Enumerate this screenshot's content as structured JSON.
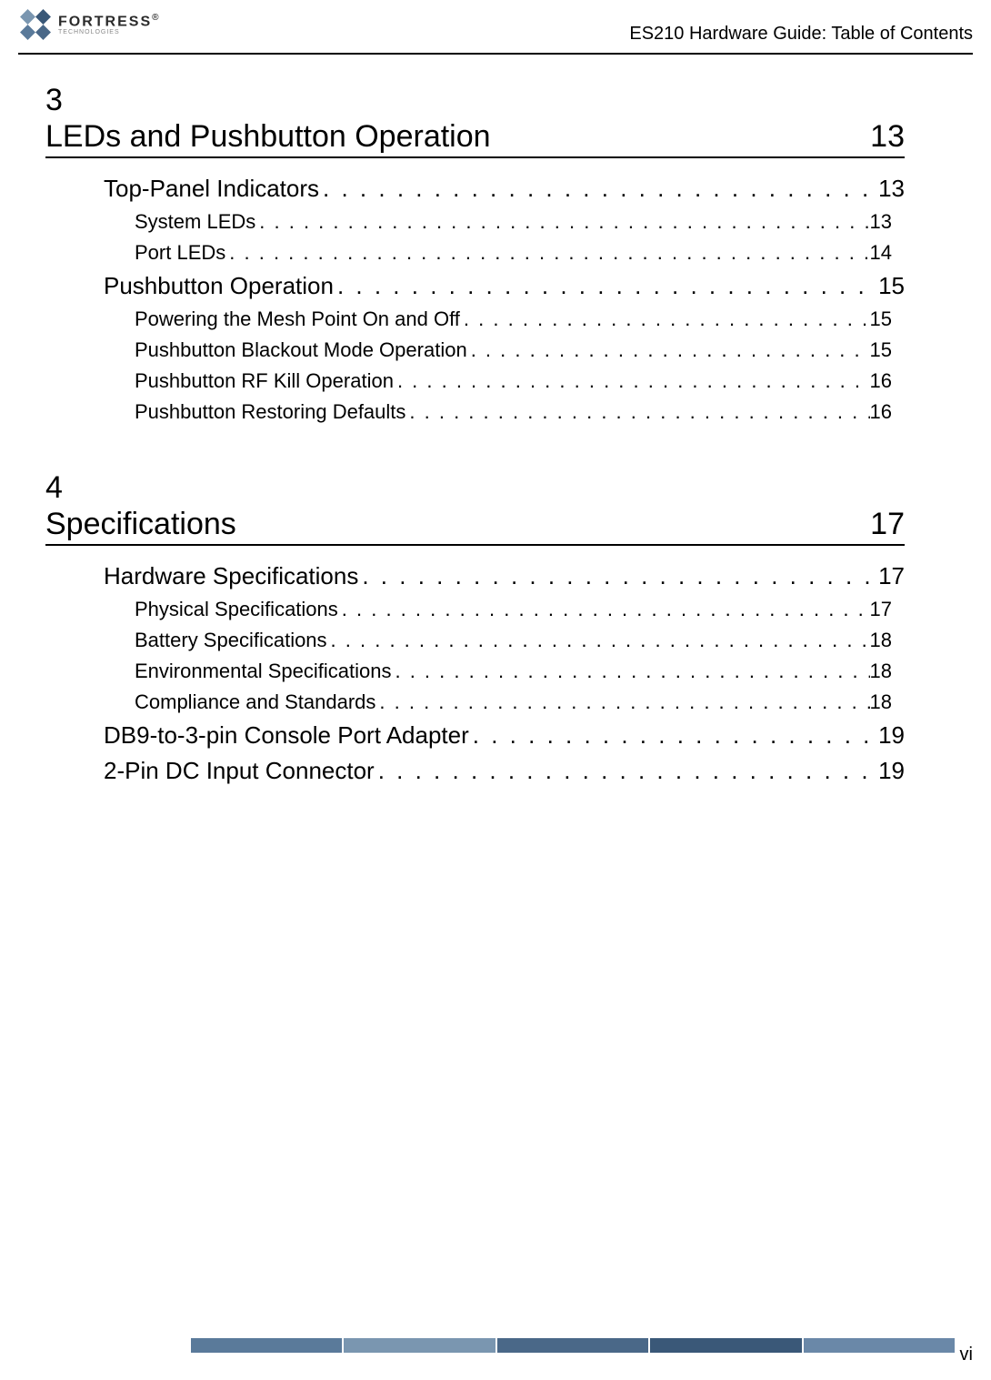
{
  "header": {
    "logo_main": "FORTRESS",
    "logo_sub": "TECHNOLOGIES",
    "logo_r": "®",
    "header_text": "ES210 Hardware Guide: Table of Contents"
  },
  "chapters": [
    {
      "num": "3",
      "title": "LEDs and Pushbutton Operation",
      "page": "13",
      "entries": [
        {
          "level": 1,
          "label": "Top-Panel Indicators",
          "page": "13"
        },
        {
          "level": 2,
          "label": "System LEDs",
          "page": "13"
        },
        {
          "level": 2,
          "label": "Port LEDs",
          "page": "14"
        },
        {
          "level": 1,
          "label": "Pushbutton Operation",
          "page": "15"
        },
        {
          "level": 2,
          "label": "Powering the Mesh Point On and Off",
          "page": "15"
        },
        {
          "level": 2,
          "label": "Pushbutton Blackout Mode Operation",
          "page": "15"
        },
        {
          "level": 2,
          "label": "Pushbutton RF Kill Operation",
          "page": "16"
        },
        {
          "level": 2,
          "label": "Pushbutton Restoring Defaults",
          "page": "16"
        }
      ]
    },
    {
      "num": "4",
      "title": "Specifications",
      "page": "17",
      "entries": [
        {
          "level": 1,
          "label": "Hardware Specifications",
          "page": "17"
        },
        {
          "level": 2,
          "label": "Physical Specifications",
          "page": "17"
        },
        {
          "level": 2,
          "label": "Battery Specifications",
          "page": "18"
        },
        {
          "level": 2,
          "label": "Environmental Specifications",
          "page": "18"
        },
        {
          "level": 2,
          "label": "Compliance and Standards",
          "page": "18"
        },
        {
          "level": 1,
          "label": "DB9-to-3-pin Console Port Adapter",
          "page": "19"
        },
        {
          "level": 1,
          "label": "2-Pin DC Input Connector",
          "page": "19"
        }
      ]
    }
  ],
  "footer": {
    "page_num": "vi",
    "colors": [
      "#5a7a9a",
      "#7a96b0",
      "#4a6888",
      "#3a5878",
      "#6a88a8"
    ]
  },
  "colors": {
    "text": "#000000",
    "background": "#ffffff",
    "border": "#000000",
    "logo_text": "#2a2a2a",
    "logo_sub": "#888888"
  },
  "dots": ". . . . . . . . . . . . . . . . . . . . . . . . . . . . . . . . . . . . . . . . . . . . . . . . . . . . . . . . . . . . . . . . . . . . . . . . . . . . . . . . . . . . . . . . . ."
}
